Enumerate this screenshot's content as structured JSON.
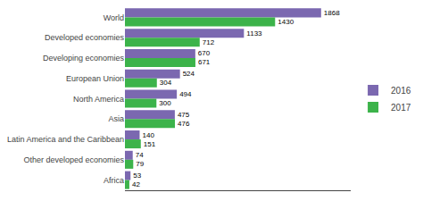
{
  "chart_data": {
    "type": "bar",
    "orientation": "horizontal",
    "categories": [
      "World",
      "Developed economies",
      "Developing economies",
      "European Union",
      "North America",
      "Asia",
      "Latin America and the Caribbean",
      "Other developed economies",
      "Africa"
    ],
    "series": [
      {
        "name": "2016",
        "color": "#7B68B0",
        "values": [
          1868,
          1133,
          670,
          524,
          494,
          475,
          140,
          74,
          53
        ]
      },
      {
        "name": "2017",
        "color": "#3CB34A",
        "values": [
          1430,
          712,
          671,
          304,
          300,
          476,
          151,
          79,
          42
        ]
      }
    ],
    "xlim": [
      0,
      2150
    ],
    "data_labels": true,
    "tick_labels": "y",
    "legend": "right",
    "grid": false
  }
}
